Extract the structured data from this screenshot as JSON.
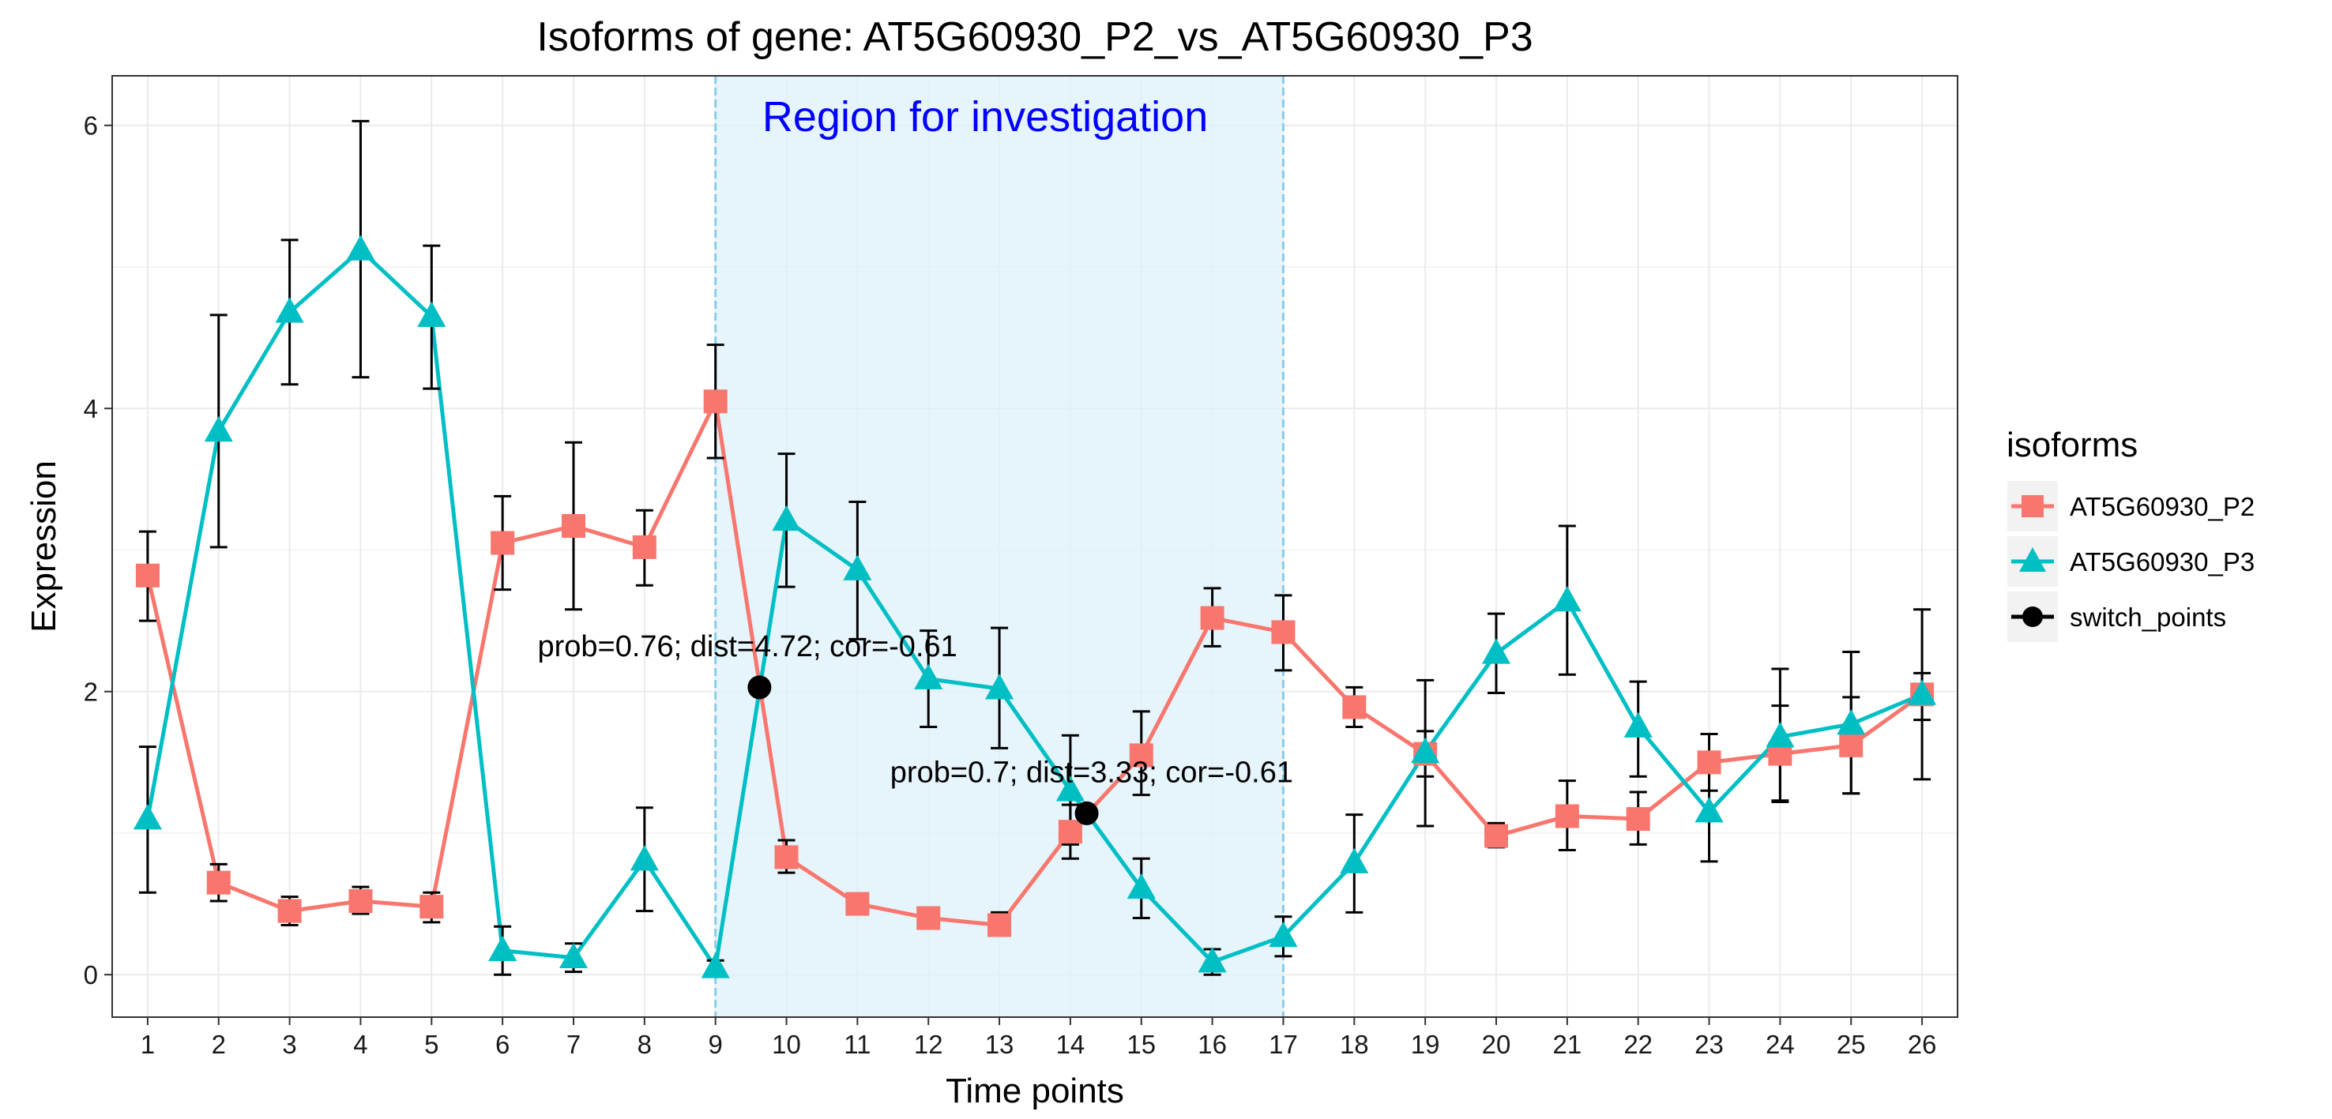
{
  "chart_data": {
    "type": "line",
    "title": "Isoforms of gene: AT5G60930_P2_vs_AT5G60930_P3",
    "xlabel": "Time points",
    "ylabel": "Expression",
    "x": [
      1,
      2,
      3,
      4,
      5,
      6,
      7,
      8,
      9,
      10,
      11,
      12,
      13,
      14,
      15,
      16,
      17,
      18,
      19,
      20,
      21,
      22,
      23,
      24,
      25,
      26
    ],
    "xlim": [
      0.5,
      26.5
    ],
    "ylim": [
      -0.3,
      6.35
    ],
    "yticks": [
      0,
      2,
      4,
      6
    ],
    "grid": true,
    "legend": {
      "title": "isoforms",
      "position": "right"
    },
    "series": [
      {
        "name": "AT5G60930_P2",
        "color": "#F8766D",
        "marker": "square",
        "values": [
          2.82,
          0.65,
          0.45,
          0.52,
          0.48,
          3.05,
          3.17,
          3.02,
          4.05,
          0.83,
          0.5,
          0.4,
          0.35,
          1.01,
          1.55,
          2.52,
          2.42,
          1.89,
          1.56,
          0.98,
          1.12,
          1.1,
          1.5,
          1.56,
          1.62,
          1.98
        ],
        "err_low": [
          2.5,
          0.52,
          0.35,
          0.43,
          0.37,
          2.72,
          2.58,
          2.75,
          3.65,
          0.72,
          0.43,
          0.35,
          0.28,
          0.82,
          1.27,
          2.32,
          2.15,
          1.75,
          1.4,
          0.9,
          0.88,
          0.92,
          1.3,
          1.22,
          1.28,
          1.8
        ],
        "err_high": [
          3.13,
          0.78,
          0.55,
          0.62,
          0.58,
          3.38,
          3.76,
          3.28,
          4.45,
          0.95,
          0.57,
          0.45,
          0.44,
          1.2,
          1.86,
          2.73,
          2.68,
          2.03,
          1.72,
          1.07,
          1.37,
          1.29,
          1.7,
          1.9,
          1.96,
          2.13
        ]
      },
      {
        "name": "AT5G60930_P3",
        "color": "#00BFC4",
        "marker": "triangle",
        "values": [
          1.1,
          3.84,
          4.68,
          5.12,
          4.65,
          0.17,
          0.12,
          0.81,
          0.05,
          3.21,
          2.86,
          2.09,
          2.02,
          1.3,
          0.61,
          0.09,
          0.27,
          0.79,
          1.57,
          2.27,
          2.64,
          1.75,
          1.15,
          1.68,
          1.77,
          1.98
        ],
        "err_low": [
          0.58,
          3.02,
          4.17,
          4.22,
          4.14,
          0.0,
          0.02,
          0.45,
          0.0,
          2.74,
          2.37,
          1.75,
          1.6,
          0.92,
          0.4,
          0.0,
          0.13,
          0.44,
          1.05,
          1.99,
          2.12,
          1.4,
          0.8,
          1.23,
          1.28,
          1.38
        ],
        "err_high": [
          1.61,
          4.66,
          5.19,
          6.03,
          5.15,
          0.34,
          0.22,
          1.18,
          0.1,
          3.68,
          3.34,
          2.43,
          2.45,
          1.69,
          0.82,
          0.18,
          0.41,
          1.13,
          2.08,
          2.55,
          3.17,
          2.07,
          1.5,
          2.16,
          2.28,
          2.58
        ]
      }
    ],
    "switch_points": {
      "name": "switch_points",
      "color": "#000000",
      "points": [
        {
          "x": 9.62,
          "y": 2.03,
          "label": "prob=0.76; dist=4.72; cor=-0.61",
          "label_x": 9.45,
          "label_y": 2.25
        },
        {
          "x": 14.23,
          "y": 1.14,
          "label": "prob=0.7; dist=3.33; cor=-0.61",
          "label_x": 14.3,
          "label_y": 1.36
        }
      ]
    },
    "region": {
      "label": "Region for investigation",
      "x_start": 9,
      "x_end": 17,
      "fill": "#DDF0FA",
      "line_color": "#87CEEB",
      "label_color": "#0000FF"
    }
  }
}
